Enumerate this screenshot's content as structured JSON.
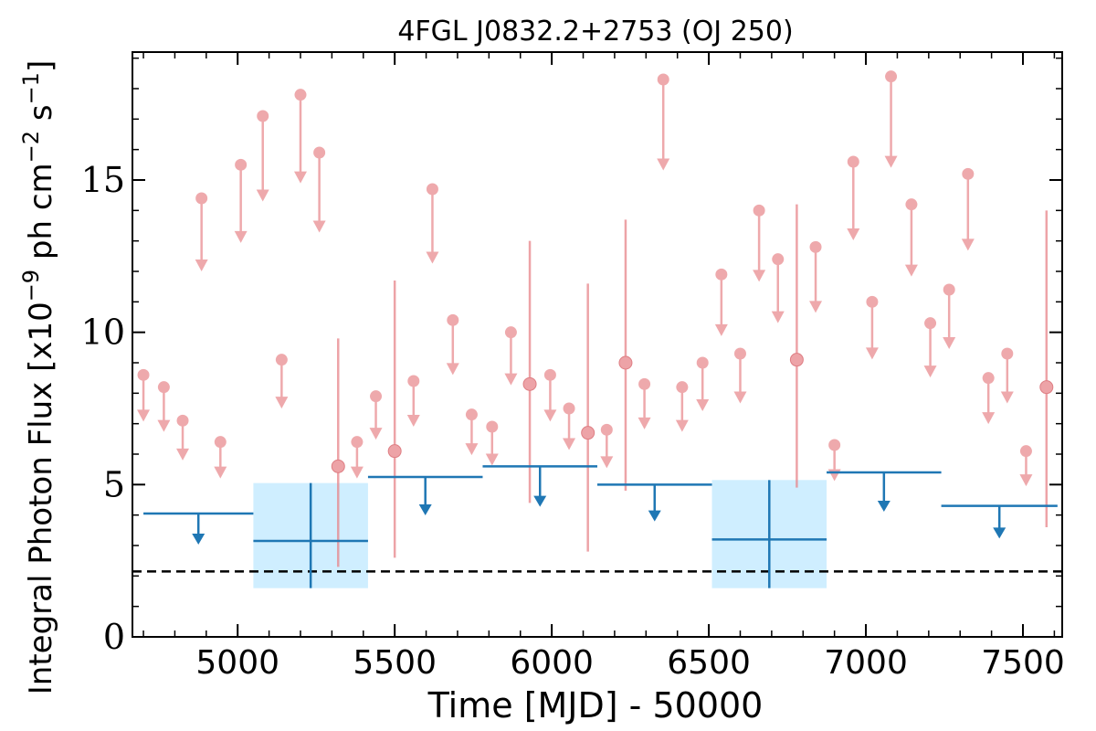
{
  "chart_data": {
    "type": "scatter",
    "title": "4FGL J0832.2+2753 (OJ 250)",
    "xlabel": "Time [MJD] - 50000",
    "ylabel": "Integral Photon Flux [x10",
    "ylabel_exp1": "−9",
    "ylabel_mid": " ph cm",
    "ylabel_exp2": "−2",
    "ylabel_mid2": " s",
    "ylabel_exp3": "−1",
    "ylabel_end": "]",
    "xlim": [
      4665,
      7625
    ],
    "ylim": [
      0,
      19.2
    ],
    "x_ticks": [
      5000,
      5500,
      6000,
      6500,
      7000,
      7500
    ],
    "x_tick_labels": [
      "5000",
      "5500",
      "6000",
      "6500",
      "7000",
      "7500"
    ],
    "y_ticks": [
      0,
      5,
      10,
      15
    ],
    "y_tick_labels": [
      "0",
      "5",
      "10",
      "15"
    ],
    "reference_line": {
      "y": 2.15,
      "style": "dashed",
      "color": "#000000"
    },
    "colors": {
      "short_bins": "#e8858a",
      "long_bins": "#1f77b4",
      "long_bin_band": "#cfeeff"
    },
    "short_bins_upper_limits": [
      {
        "x": 4700,
        "y": 8.6
      },
      {
        "x": 4765,
        "y": 8.2
      },
      {
        "x": 4825,
        "y": 7.1
      },
      {
        "x": 4885,
        "y": 14.4
      },
      {
        "x": 4945,
        "y": 6.4
      },
      {
        "x": 5010,
        "y": 15.5
      },
      {
        "x": 5080,
        "y": 17.1
      },
      {
        "x": 5140,
        "y": 9.1
      },
      {
        "x": 5200,
        "y": 17.8
      },
      {
        "x": 5260,
        "y": 15.9
      },
      {
        "x": 5380,
        "y": 6.4
      },
      {
        "x": 5440,
        "y": 7.9
      },
      {
        "x": 5560,
        "y": 8.4
      },
      {
        "x": 5620,
        "y": 14.7
      },
      {
        "x": 5685,
        "y": 10.4
      },
      {
        "x": 5745,
        "y": 7.3
      },
      {
        "x": 5810,
        "y": 6.9
      },
      {
        "x": 5870,
        "y": 10.0
      },
      {
        "x": 5995,
        "y": 8.6
      },
      {
        "x": 6055,
        "y": 7.5
      },
      {
        "x": 6175,
        "y": 6.8
      },
      {
        "x": 6295,
        "y": 8.3
      },
      {
        "x": 6415,
        "y": 8.2
      },
      {
        "x": 6480,
        "y": 9.0
      },
      {
        "x": 6540,
        "y": 11.9
      },
      {
        "x": 6600,
        "y": 9.3
      },
      {
        "x": 6660,
        "y": 14.0
      },
      {
        "x": 6720,
        "y": 12.4
      },
      {
        "x": 6840,
        "y": 12.8
      },
      {
        "x": 6900,
        "y": 6.3
      },
      {
        "x": 6960,
        "y": 15.6
      },
      {
        "x": 7020,
        "y": 11.0
      },
      {
        "x": 7080,
        "y": 18.4
      },
      {
        "x": 7145,
        "y": 14.2
      },
      {
        "x": 7205,
        "y": 10.3
      },
      {
        "x": 7265,
        "y": 11.4
      },
      {
        "x": 7325,
        "y": 15.2
      },
      {
        "x": 7390,
        "y": 8.5
      },
      {
        "x": 7450,
        "y": 9.3
      },
      {
        "x": 7510,
        "y": 6.1
      },
      {
        "x": 6355,
        "y": 18.3
      }
    ],
    "short_bins_detections": [
      {
        "x": 5320,
        "y": 5.6,
        "ylow": 2.3,
        "yhigh": 9.8
      },
      {
        "x": 5500,
        "y": 6.1,
        "ylow": 2.6,
        "yhigh": 11.7
      },
      {
        "x": 5930,
        "y": 8.3,
        "ylow": 4.4,
        "yhigh": 13.0
      },
      {
        "x": 6115,
        "y": 6.7,
        "ylow": 2.8,
        "yhigh": 11.6
      },
      {
        "x": 6235,
        "y": 9.0,
        "ylow": 4.8,
        "yhigh": 13.7
      },
      {
        "x": 6780,
        "y": 9.1,
        "ylow": 4.9,
        "yhigh": 14.2
      },
      {
        "x": 7575,
        "y": 8.2,
        "ylow": 3.6,
        "yhigh": 14.0
      }
    ],
    "long_bins_upper_limits": [
      {
        "x0": 4700,
        "x1": 5050,
        "y": 4.05
      },
      {
        "x0": 5415,
        "x1": 5780,
        "y": 5.25
      },
      {
        "x0": 5780,
        "x1": 6145,
        "y": 5.6
      },
      {
        "x0": 6145,
        "x1": 6510,
        "y": 5.0
      },
      {
        "x0": 6875,
        "x1": 7240,
        "y": 5.4
      },
      {
        "x0": 7240,
        "x1": 7610,
        "y": 4.3
      }
    ],
    "long_bins_detections": [
      {
        "x0": 5050,
        "x1": 5415,
        "y": 3.15,
        "ylow": 1.6,
        "yhigh": 5.05
      },
      {
        "x0": 6510,
        "x1": 6875,
        "y": 3.2,
        "ylow": 1.6,
        "yhigh": 5.15
      }
    ]
  }
}
